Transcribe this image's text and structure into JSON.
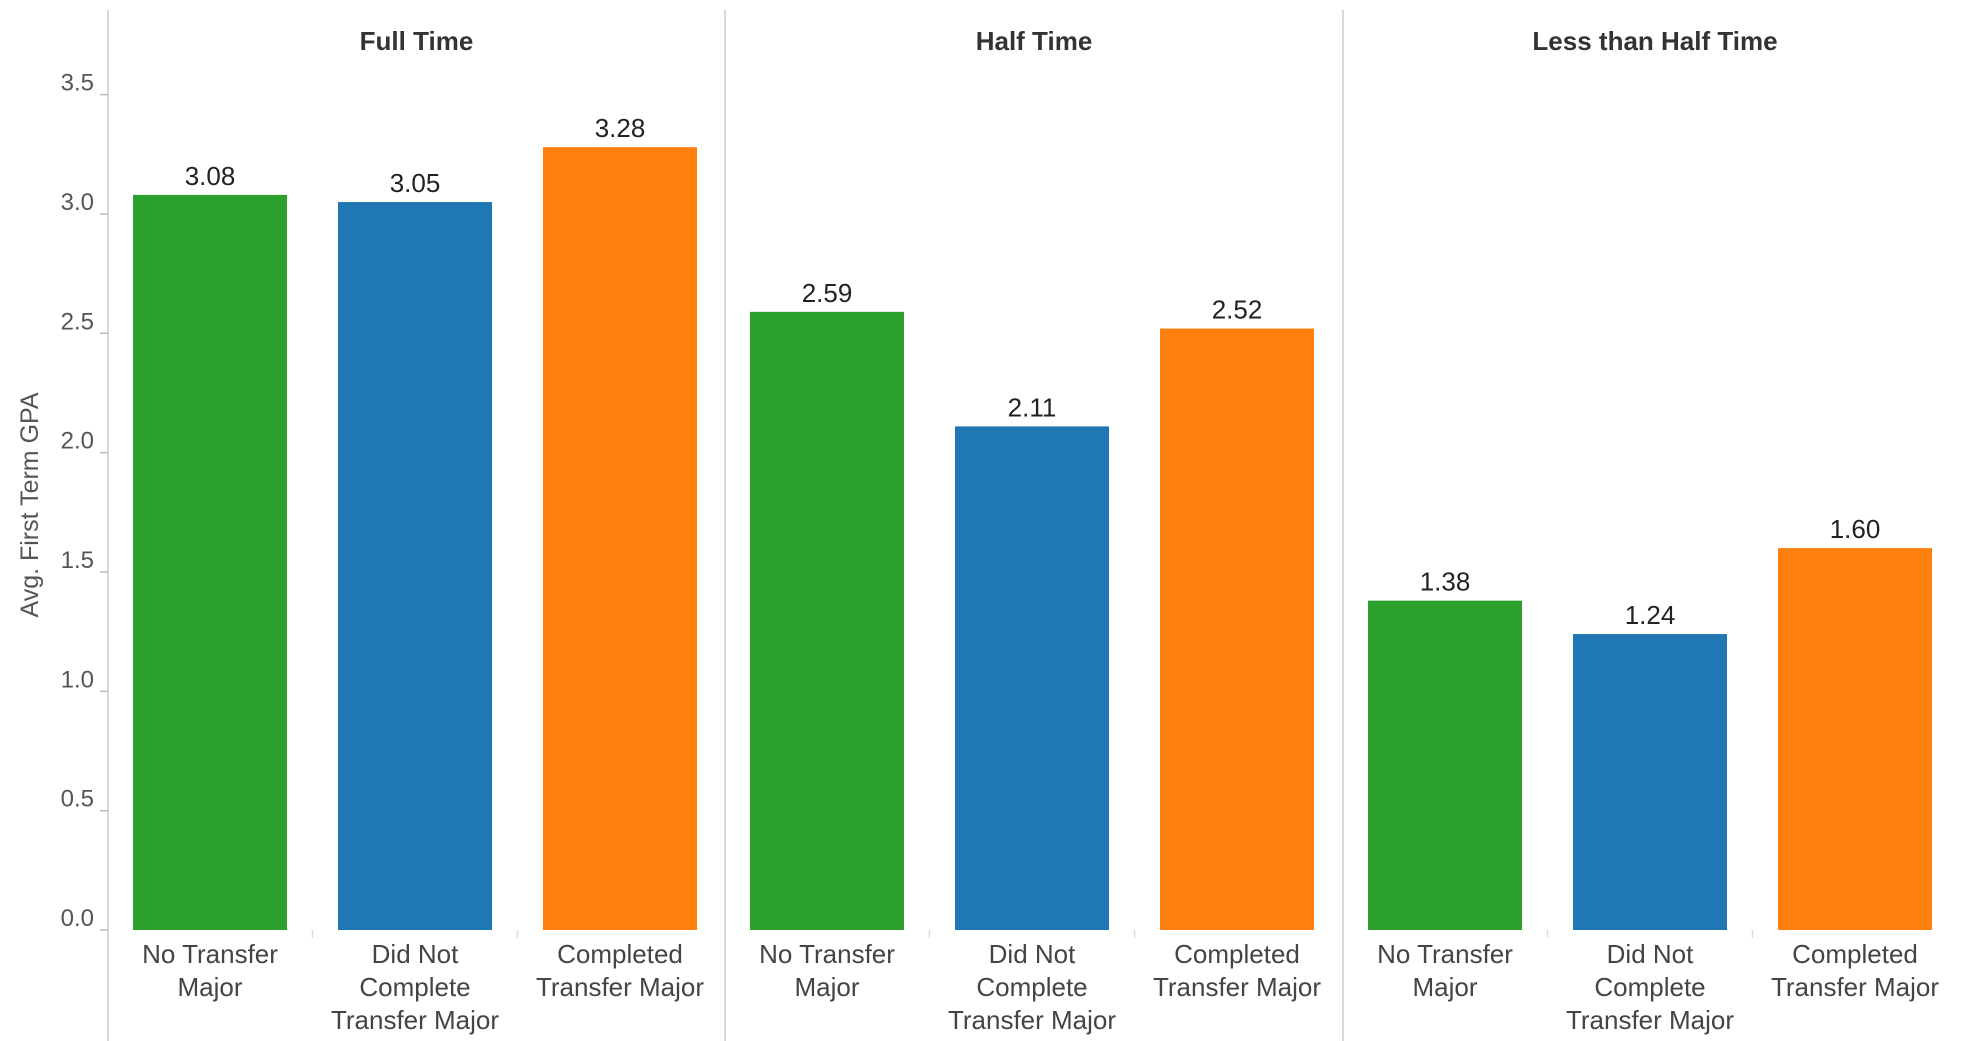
{
  "chart_data": {
    "type": "bar",
    "ylabel": "Avg. First Term GPA",
    "ylim": [
      0,
      3.75
    ],
    "yticks": [
      "0.0",
      "0.5",
      "1.0",
      "1.5",
      "2.0",
      "2.5",
      "3.0",
      "3.5"
    ],
    "grid": false,
    "legend": "none",
    "categories": [
      [
        "No Transfer",
        "Major"
      ],
      [
        "Did Not",
        "Complete",
        "Transfer Major"
      ],
      [
        "Completed",
        "Transfer Major"
      ]
    ],
    "colors": [
      "#2ca02c",
      "#1f77b4",
      "#ff7f0e"
    ],
    "panels": [
      {
        "title": "Full Time",
        "values": [
          3.08,
          3.05,
          3.28
        ],
        "labels": [
          "3.08",
          "3.05",
          "3.28"
        ]
      },
      {
        "title": "Half Time",
        "values": [
          2.59,
          2.11,
          2.52
        ],
        "labels": [
          "2.59",
          "2.11",
          "2.52"
        ]
      },
      {
        "title": "Less than Half Time",
        "values": [
          1.38,
          1.24,
          1.6
        ],
        "labels": [
          "1.38",
          "1.24",
          "1.60"
        ]
      }
    ]
  }
}
